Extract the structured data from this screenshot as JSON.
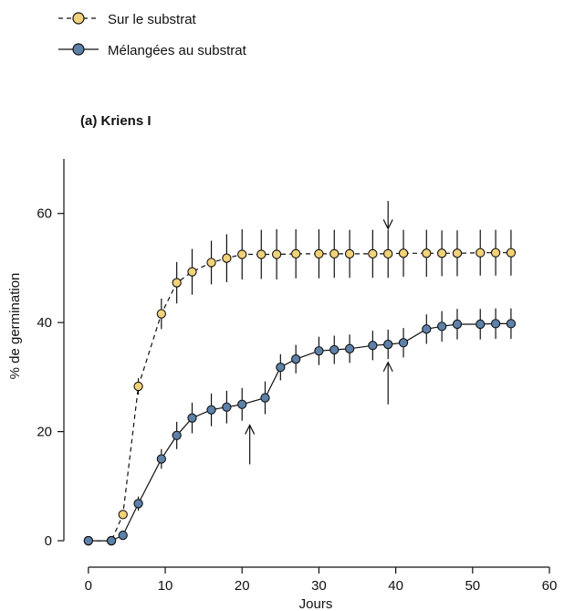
{
  "legend": [
    {
      "series": "sur",
      "label": "Sur le substrat"
    },
    {
      "series": "mel",
      "label": "Mélangées au substrat"
    }
  ],
  "chart_data": {
    "type": "line",
    "title": "(a) Kriens I",
    "xlabel": "Jours",
    "ylabel": "% de germination",
    "xlim": [
      -2,
      60
    ],
    "ylim": [
      -2,
      70
    ],
    "xticks": [
      0,
      10,
      20,
      30,
      40,
      50,
      60
    ],
    "yticks": [
      0,
      20,
      40,
      60
    ],
    "grid": false,
    "legend_position": "top-left",
    "series": [
      {
        "name": "Sur le substrat",
        "key": "sur",
        "color": "#f2d279",
        "line_style": "dashed",
        "points": [
          {
            "x": 0,
            "y": 0,
            "err": 0
          },
          {
            "x": 3,
            "y": 0,
            "err": 0
          },
          {
            "x": 4.5,
            "y": 4.8,
            "err": 0.6
          },
          {
            "x": 6.5,
            "y": 28.3,
            "err": 1.5
          },
          {
            "x": 9.5,
            "y": 41.6,
            "err": 2.8
          },
          {
            "x": 11.5,
            "y": 47.3,
            "err": 3.8
          },
          {
            "x": 13.5,
            "y": 49.3,
            "err": 4.2
          },
          {
            "x": 16,
            "y": 51.0,
            "err": 4.0
          },
          {
            "x": 18,
            "y": 51.8,
            "err": 4.4
          },
          {
            "x": 20,
            "y": 52.5,
            "err": 4.6
          },
          {
            "x": 22.5,
            "y": 52.5,
            "err": 4.5
          },
          {
            "x": 24.5,
            "y": 52.5,
            "err": 4.6
          },
          {
            "x": 27,
            "y": 52.6,
            "err": 4.5
          },
          {
            "x": 30,
            "y": 52.6,
            "err": 4.5
          },
          {
            "x": 32,
            "y": 52.6,
            "err": 4.4
          },
          {
            "x": 34,
            "y": 52.6,
            "err": 4.4
          },
          {
            "x": 37,
            "y": 52.6,
            "err": 4.4
          },
          {
            "x": 39,
            "y": 52.6,
            "err": 4.4
          },
          {
            "x": 41,
            "y": 52.7,
            "err": 4.3
          },
          {
            "x": 44,
            "y": 52.7,
            "err": 4.3
          },
          {
            "x": 46,
            "y": 52.7,
            "err": 4.2
          },
          {
            "x": 48,
            "y": 52.7,
            "err": 4.2
          },
          {
            "x": 51,
            "y": 52.8,
            "err": 4.2
          },
          {
            "x": 53,
            "y": 52.8,
            "err": 4.2
          },
          {
            "x": 55,
            "y": 52.8,
            "err": 4.2
          }
        ]
      },
      {
        "name": "Mélangées au substrat",
        "key": "mel",
        "color": "#5d81a8",
        "line_style": "solid",
        "points": [
          {
            "x": 0,
            "y": 0,
            "err": 0
          },
          {
            "x": 3,
            "y": 0,
            "err": 0
          },
          {
            "x": 4.5,
            "y": 1.0,
            "err": 0.4
          },
          {
            "x": 6.5,
            "y": 6.8,
            "err": 1.3
          },
          {
            "x": 9.5,
            "y": 15.0,
            "err": 1.8
          },
          {
            "x": 11.5,
            "y": 19.3,
            "err": 2.5
          },
          {
            "x": 13.5,
            "y": 22.5,
            "err": 2.8
          },
          {
            "x": 16,
            "y": 24.0,
            "err": 3.0
          },
          {
            "x": 18,
            "y": 24.5,
            "err": 3.0
          },
          {
            "x": 20,
            "y": 25.0,
            "err": 3.0
          },
          {
            "x": 23,
            "y": 26.2,
            "err": 3.0
          },
          {
            "x": 25,
            "y": 31.8,
            "err": 2.4
          },
          {
            "x": 27,
            "y": 33.3,
            "err": 2.6
          },
          {
            "x": 30,
            "y": 34.8,
            "err": 2.6
          },
          {
            "x": 32,
            "y": 35.0,
            "err": 2.6
          },
          {
            "x": 34,
            "y": 35.2,
            "err": 2.6
          },
          {
            "x": 37,
            "y": 35.8,
            "err": 2.7
          },
          {
            "x": 39,
            "y": 36.0,
            "err": 2.7
          },
          {
            "x": 41,
            "y": 36.3,
            "err": 2.7
          },
          {
            "x": 44,
            "y": 38.8,
            "err": 2.7
          },
          {
            "x": 46,
            "y": 39.3,
            "err": 2.8
          },
          {
            "x": 48,
            "y": 39.7,
            "err": 2.8
          },
          {
            "x": 51,
            "y": 39.7,
            "err": 2.8
          },
          {
            "x": 53,
            "y": 39.8,
            "err": 2.8
          },
          {
            "x": 55,
            "y": 39.8,
            "err": 2.8
          }
        ]
      }
    ],
    "annotations": [
      {
        "type": "arrow-down",
        "x": 39,
        "y_from": 62.3,
        "y_to": 57.2
      },
      {
        "type": "arrow-up",
        "x": 39,
        "y_from": 25.0,
        "y_to": 32.7
      },
      {
        "type": "arrow-up",
        "x": 21,
        "y_from": 14.0,
        "y_to": 21.2
      }
    ]
  }
}
